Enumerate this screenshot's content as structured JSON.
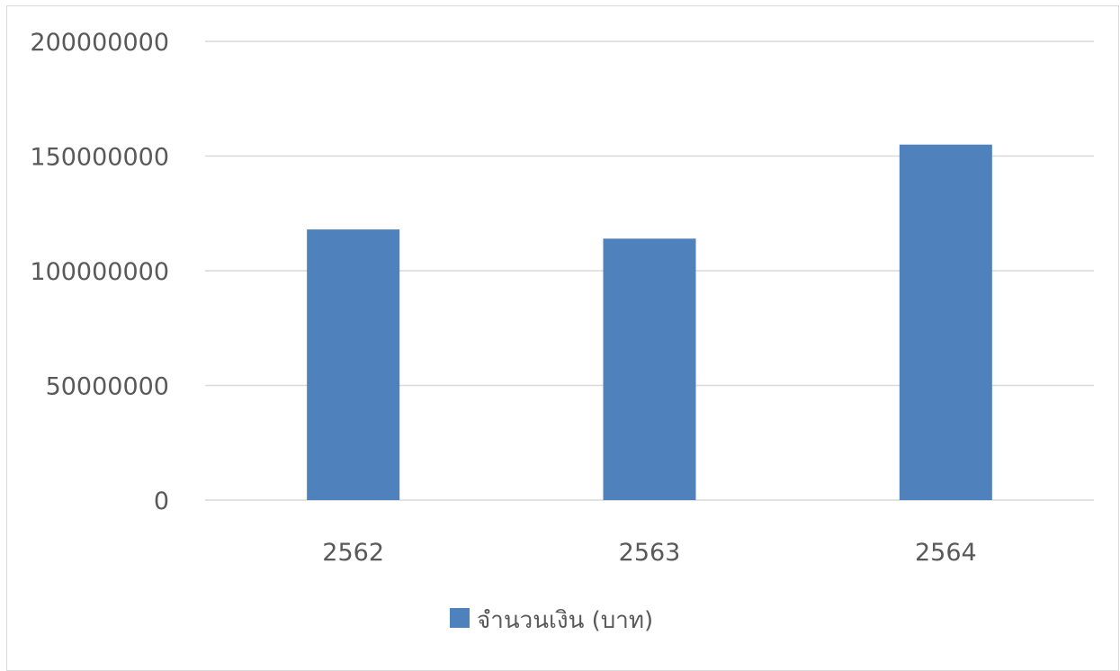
{
  "chart_data": {
    "type": "bar",
    "categories": [
      "2562",
      "2563",
      "2564"
    ],
    "series": [
      {
        "name": "จำนวนเงิน (บาท)",
        "values": [
          118000000,
          114000000,
          155000000
        ],
        "color": "#4f81bd"
      }
    ],
    "ylim": [
      0,
      200000000
    ],
    "yticks": [
      0,
      50000000,
      100000000,
      150000000,
      200000000
    ],
    "ytick_labels": [
      "0",
      "50000000",
      "100000000",
      "150000000",
      "200000000"
    ],
    "grid": true,
    "gridline_color": "#d9d9d9",
    "legend_position": "bottom"
  }
}
